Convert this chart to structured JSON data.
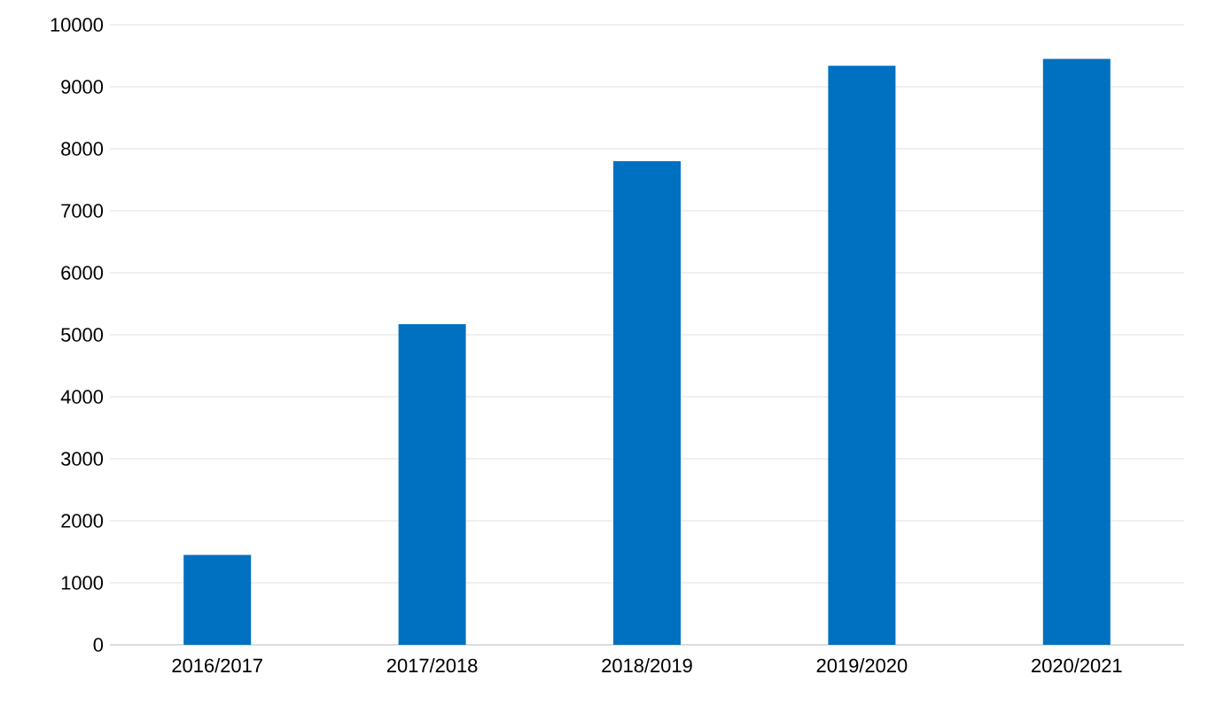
{
  "chart_data": {
    "type": "bar",
    "categories": [
      "2016/2017",
      "2017/2018",
      "2018/2019",
      "2019/2020",
      "2020/2021"
    ],
    "values": [
      1450,
      5170,
      7800,
      9340,
      9450
    ],
    "color": "#0070c0",
    "ylim": [
      0,
      10000
    ],
    "yticks": [
      0,
      1000,
      2000,
      3000,
      4000,
      5000,
      6000,
      7000,
      8000,
      9000,
      10000
    ],
    "grid": "y"
  }
}
